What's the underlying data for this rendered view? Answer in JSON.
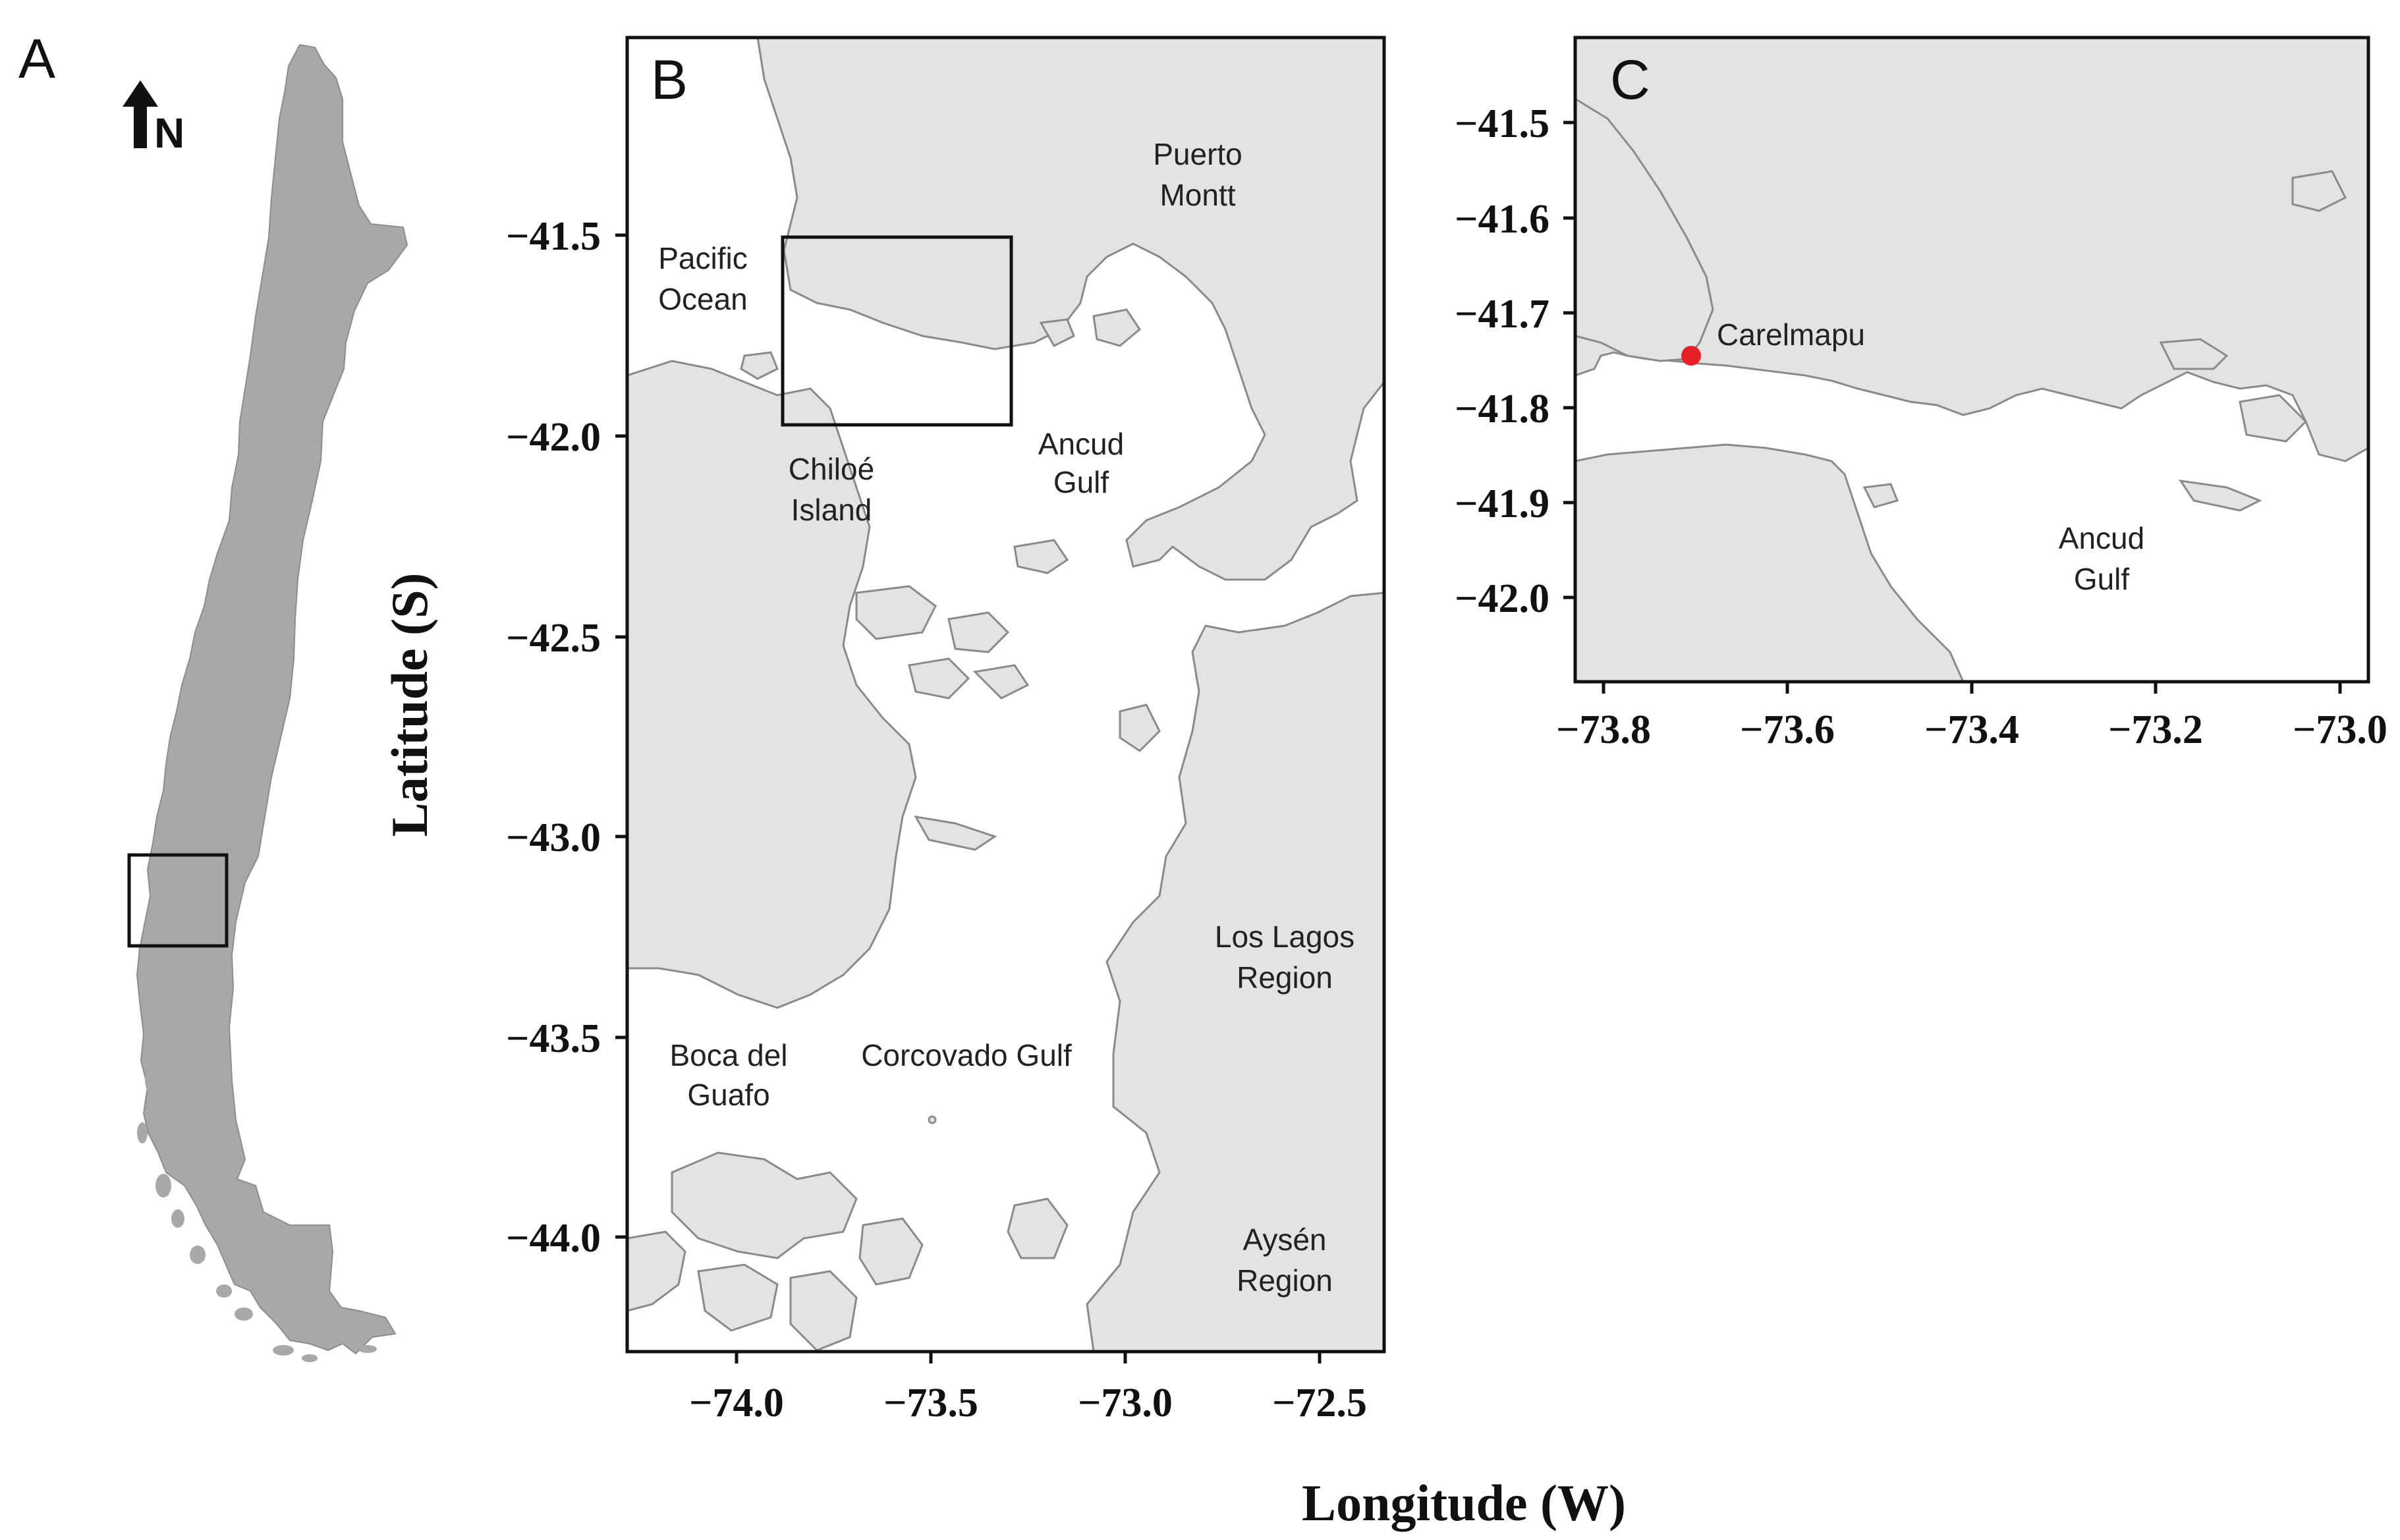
{
  "panels": {
    "a": {
      "letter": "A",
      "north_label": "N"
    },
    "b": {
      "letter": "B",
      "x_ticks": [
        "−74.0",
        "−73.5",
        "−73.0",
        "−72.5"
      ],
      "y_ticks": [
        "−41.5",
        "−42.0",
        "−42.5",
        "−43.0",
        "−43.5",
        "−44.0"
      ],
      "places": {
        "pacific": [
          "Pacific",
          "Ocean"
        ],
        "puerto_montt": [
          "Puerto",
          "Montt"
        ],
        "chiloe": [
          "Chiloé",
          "Island"
        ],
        "ancud": [
          "Ancud",
          "Gulf"
        ],
        "los_lagos": [
          "Los Lagos",
          "Region"
        ],
        "boca": [
          "Boca del",
          "Guafo"
        ],
        "corcovado": "Corcovado Gulf",
        "aysen": [
          "Aysén",
          "Region"
        ]
      }
    },
    "c": {
      "letter": "C",
      "x_ticks": [
        "−73.8",
        "−73.6",
        "−73.4",
        "−73.2",
        "−73.0"
      ],
      "y_ticks": [
        "−41.5",
        "−41.6",
        "−41.7",
        "−41.8",
        "−41.9",
        "−42.0"
      ],
      "places": {
        "carelmapu": "Carelmapu",
        "ancud": [
          "Ancud",
          "Gulf"
        ]
      },
      "site_color": "#e8202a"
    }
  },
  "axes": {
    "ylabel": "Latitude (S)",
    "xlabel": "Longitude (W)"
  },
  "colors": {
    "land": "#e3e3e3",
    "chile": "#a9a7aa",
    "water": "#ffffff"
  }
}
